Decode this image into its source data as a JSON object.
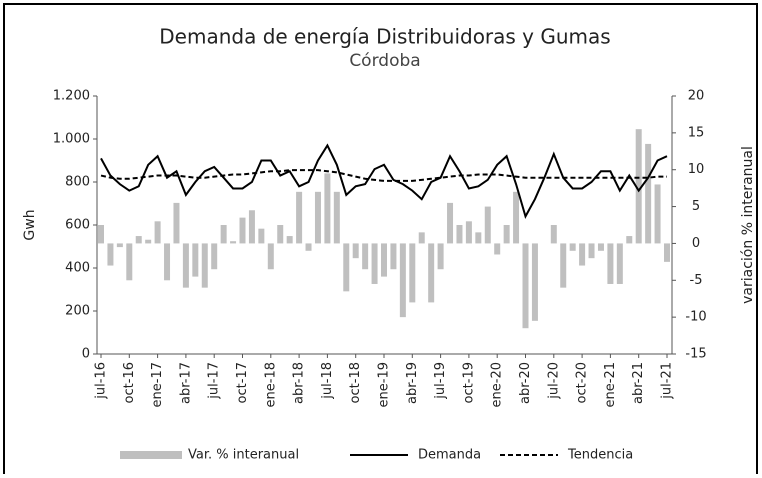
{
  "chart_data": {
    "type": "bar_line",
    "title": "Demanda de energía Distribuidoras y Gumas",
    "subtitle": "Córdoba",
    "y_label": "Gwh",
    "y2_label": "variación % interanual",
    "categories": [
      "jul-16",
      null,
      null,
      "oct-16",
      null,
      null,
      "ene-17",
      null,
      null,
      "abr-17",
      null,
      null,
      "jul-17",
      null,
      null,
      "oct-17",
      null,
      null,
      "ene-18",
      null,
      null,
      "abr-18",
      null,
      null,
      "jul-18",
      null,
      null,
      "oct-18",
      null,
      null,
      "ene-19",
      null,
      null,
      "abr-19",
      null,
      null,
      "jul-19",
      null,
      null,
      "oct-19",
      null,
      null,
      "ene-20",
      null,
      null,
      "abr-20",
      null,
      null,
      "jul-20",
      null,
      null,
      "oct-20",
      null,
      null,
      "ene-21",
      null,
      null,
      "abr-21",
      null,
      null,
      "jul-21"
    ],
    "series": [
      {
        "name": "Var. % interanual",
        "kind": "bar",
        "axis": "y2",
        "color": "#bfbfbf",
        "values": [
          2.5,
          -3,
          -0.5,
          -5,
          1,
          0.5,
          3,
          -5,
          5.5,
          -6,
          -4.5,
          -6,
          -3.5,
          2.5,
          0.3,
          3.5,
          4.5,
          2,
          -3.5,
          2.5,
          1,
          7,
          -1,
          7,
          9.5,
          7,
          -6.5,
          -2,
          -3.5,
          -5.5,
          -4.5,
          -3.5,
          -10,
          -8,
          1.5,
          -8,
          -3.5,
          5.5,
          2.5,
          3,
          1.5,
          5,
          -1.5,
          2.5,
          7,
          -11.5,
          -10.5,
          0,
          2.5,
          -6,
          -1,
          -3,
          -2,
          -1,
          -5.5,
          -5.5,
          1,
          15.5,
          13.5,
          8,
          -2.5
        ]
      },
      {
        "name": "Demanda",
        "kind": "line",
        "color": "#000000",
        "values": [
          910,
          830,
          790,
          760,
          780,
          880,
          920,
          820,
          850,
          740,
          800,
          850,
          870,
          820,
          770,
          770,
          800,
          900,
          900,
          830,
          850,
          780,
          800,
          900,
          970,
          880,
          740,
          780,
          790,
          860,
          880,
          810,
          790,
          760,
          720,
          800,
          820,
          920,
          850,
          770,
          780,
          810,
          880,
          920,
          790,
          640,
          720,
          820,
          930,
          820,
          770,
          770,
          800,
          850,
          850,
          760,
          830,
          760,
          820,
          900,
          920
        ]
      },
      {
        "name": "Tendencia",
        "kind": "dashed",
        "color": "#000000",
        "values": [
          830,
          820,
          815,
          815,
          820,
          825,
          830,
          830,
          830,
          825,
          820,
          820,
          825,
          830,
          835,
          835,
          840,
          845,
          850,
          850,
          855,
          855,
          855,
          855,
          850,
          845,
          835,
          825,
          815,
          810,
          805,
          805,
          805,
          805,
          810,
          815,
          820,
          825,
          830,
          830,
          835,
          835,
          835,
          830,
          825,
          820,
          820,
          820,
          820,
          820,
          820,
          820,
          820,
          820,
          820,
          820,
          820,
          820,
          820,
          825,
          825
        ]
      }
    ],
    "ylim": [
      0,
      1200
    ],
    "yticks": [
      0,
      200,
      400,
      600,
      800,
      {
        "value": 1000,
        "label": "1.000"
      },
      {
        "value": 1200,
        "label": "1.200"
      }
    ],
    "y2lim": [
      -15,
      20
    ],
    "y2ticks": [
      -15,
      -10,
      -5,
      0,
      5,
      10,
      15,
      20
    ]
  }
}
